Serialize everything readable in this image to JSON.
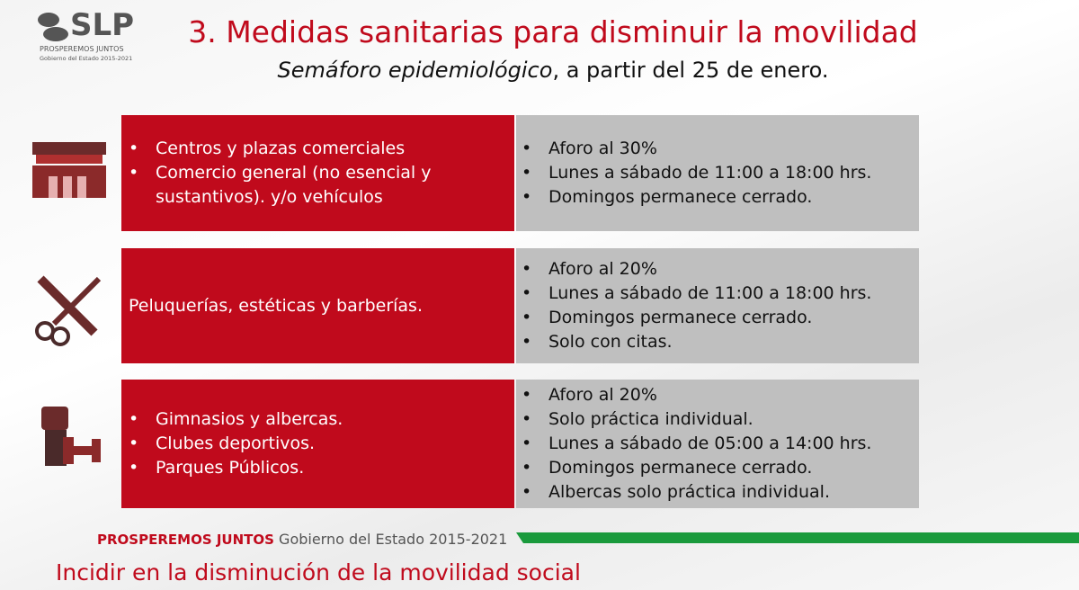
{
  "logo": {
    "mark": "SLP",
    "tagline": "PROSPEREMOS JUNTOS",
    "government": "Gobierno del Estado 2015-2021"
  },
  "header": {
    "title": "3. Medidas sanitarias para disminuir la movilidad",
    "subtitle_italic": "Semáforo epidemiológico",
    "subtitle_rest": ", a partir del 25 de enero."
  },
  "rows": [
    {
      "left_items": [
        "Centros y plazas comerciales",
        "Comercio general (no esencial y sustantivos). y/o vehículos"
      ],
      "right_items": [
        "Aforo al 30%",
        "Lunes a sábado de 11:00 a 18:00 hrs.",
        "Domingos permanece cerrado."
      ]
    },
    {
      "left_text": "Peluquerías, estéticas y barberías.",
      "right_items": [
        "Aforo al 20%",
        "Lunes a sábado de 11:00 a 18:00 hrs.",
        "Domingos permanece cerrado.",
        "Solo con citas."
      ]
    },
    {
      "left_items": [
        "Gimnasios y albercas.",
        "Clubes deportivos.",
        "Parques Públicos."
      ],
      "right_items": [
        "Aforo al 20%",
        "Solo práctica individual.",
        "Lunes a sábado de 05:00 a 14:00 hrs.",
        "Domingos permanece cerrado.",
        "Albercas solo práctica individual."
      ]
    }
  ],
  "footer": {
    "tagline": "PROSPEREMOS JUNTOS",
    "government": "Gobierno del Estado 2015-2021",
    "bottom_text": "Incidir en la disminución de la movilidad social"
  }
}
